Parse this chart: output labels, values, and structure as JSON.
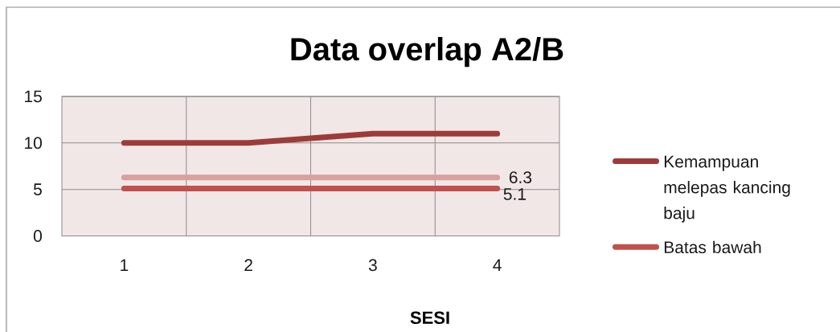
{
  "chart_data": {
    "type": "line",
    "title": "Data overlap A2/B",
    "xlabel": "SESI",
    "categories": [
      "1",
      "2",
      "3",
      "4"
    ],
    "series": [
      {
        "name": "Kemampuan melepas kancing baju",
        "color": "#9c3c3a",
        "values": [
          10,
          10,
          11,
          11
        ]
      },
      {
        "color": "#d9a09e",
        "values": [
          6.3,
          6.3,
          6.3,
          6.3
        ],
        "value_labels": [
          null,
          null,
          null,
          "6.3"
        ]
      },
      {
        "name": "Batas bawah",
        "color": "#c0504d",
        "values": [
          5.1,
          5.1,
          5.1,
          5.1
        ],
        "value_labels": [
          null,
          null,
          null,
          "5.1"
        ]
      }
    ],
    "ylim": [
      0,
      15
    ],
    "yticks": [
      0,
      5,
      10,
      15
    ],
    "grid": true,
    "legend": "right"
  }
}
